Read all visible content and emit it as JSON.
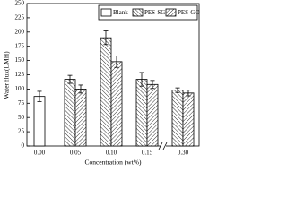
{
  "chart_data": {
    "type": "bar",
    "xlabel": "Concentration (wt%)",
    "ylabel": "Water flux(LMH)",
    "categories": [
      "0.00",
      "0.05",
      "0.10",
      "0.15",
      "0.30"
    ],
    "series": [
      {
        "name": "Blank",
        "color": "#000000",
        "values": [
          87,
          null,
          null,
          null,
          null
        ],
        "errors": [
          9,
          null,
          null,
          null,
          null
        ]
      },
      {
        "name": "PES-SG",
        "color": "#000000",
        "values": [
          null,
          117,
          190,
          117,
          98
        ],
        "errors": [
          null,
          7,
          12,
          12,
          4
        ]
      },
      {
        "name": "PES-GO",
        "color": "#000000",
        "values": [
          null,
          100,
          148,
          108,
          93
        ],
        "errors": [
          null,
          7,
          10,
          7,
          5
        ]
      }
    ],
    "ylim": [
      0,
      250
    ],
    "yticks": [
      0,
      25,
      50,
      75,
      100,
      125,
      150,
      175,
      200,
      225,
      250
    ]
  }
}
